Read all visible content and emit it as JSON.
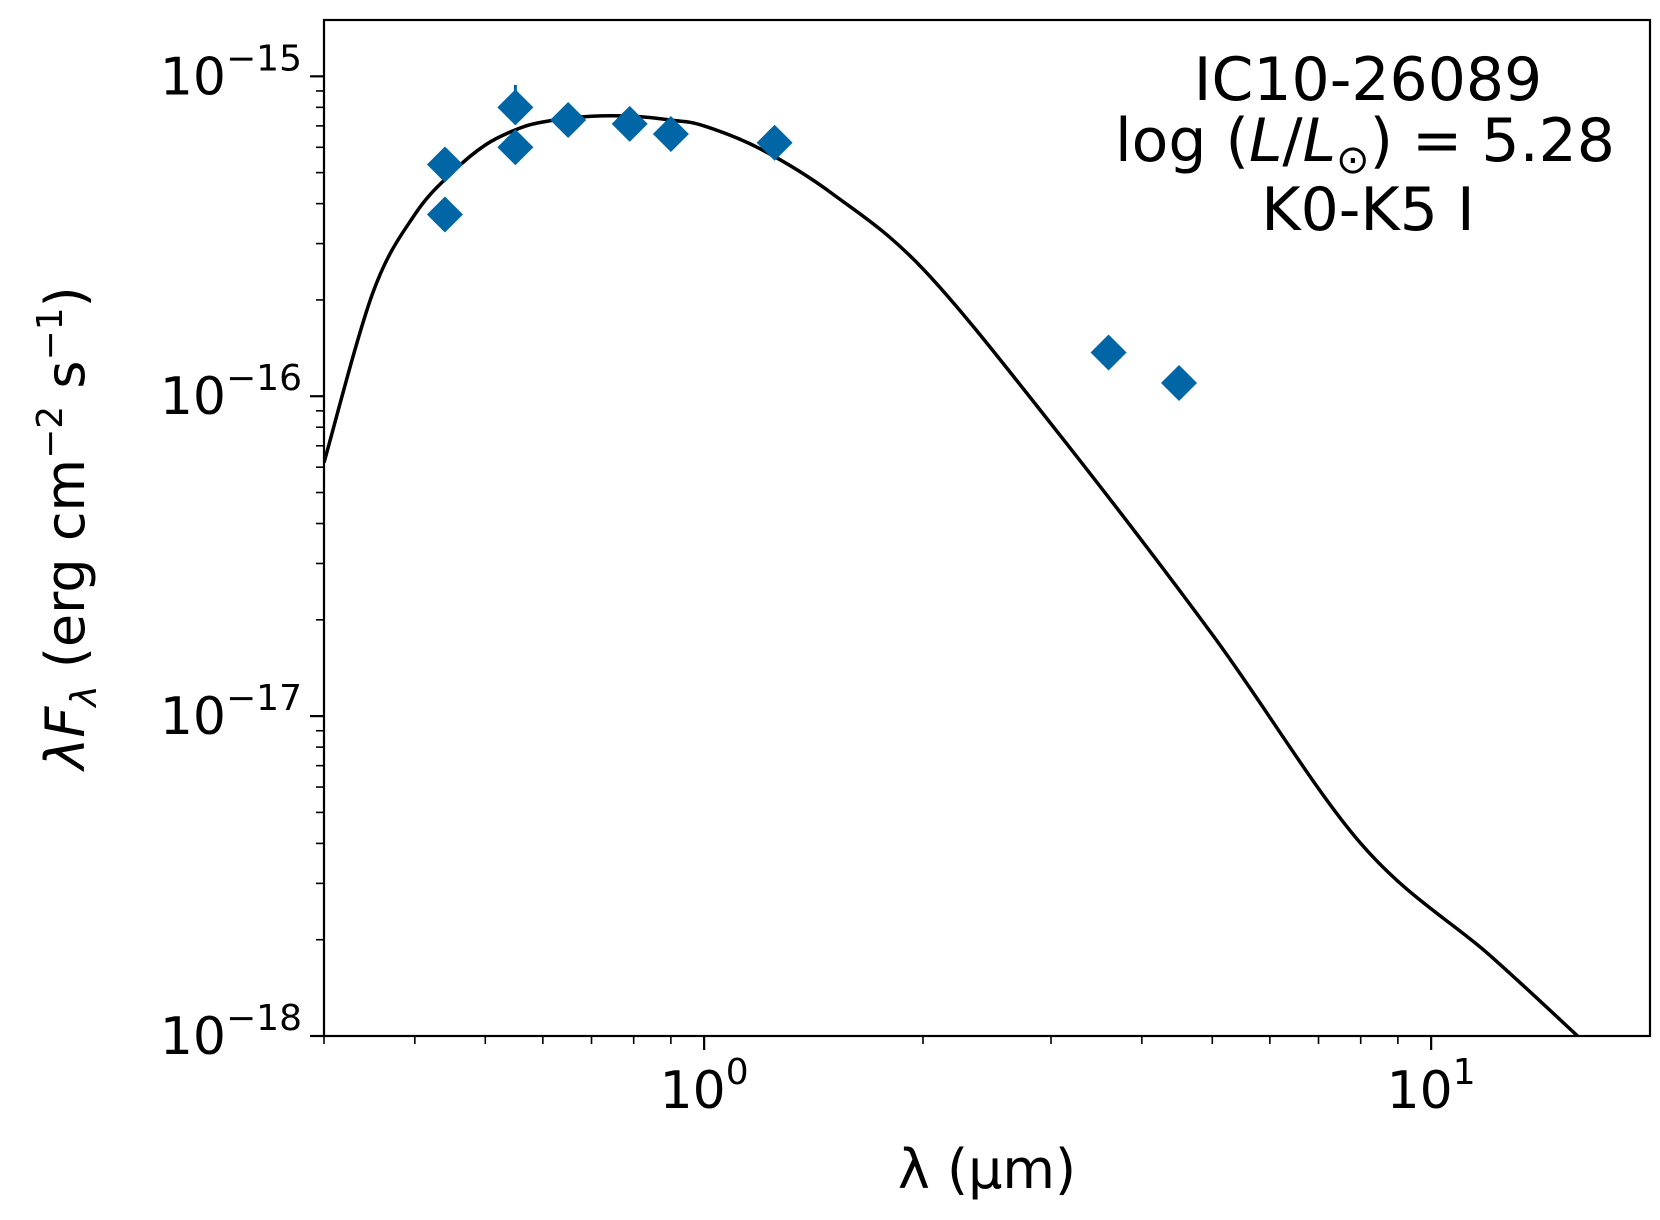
{
  "chart_data": {
    "type": "scatter",
    "scale": {
      "x": "log",
      "y": "log"
    },
    "xlim": [
      0.3,
      20
    ],
    "ylim": [
      1e-18,
      1.5e-15
    ],
    "xlabel": "λ (μm)",
    "ylabel": "λF_λ (erg cm⁻² s⁻¹)",
    "xticks": [
      {
        "value": 1,
        "base": "10",
        "exp": "0"
      },
      {
        "value": 10,
        "base": "10",
        "exp": "1"
      }
    ],
    "yticks": [
      {
        "value": 1e-15,
        "base": "10",
        "exp": "−15"
      },
      {
        "value": 1e-16,
        "base": "10",
        "exp": "−16"
      },
      {
        "value": 1e-17,
        "base": "10",
        "exp": "−17"
      },
      {
        "value": 1e-18,
        "base": "10",
        "exp": "−18"
      }
    ],
    "annotations": {
      "name": "IC10-26089",
      "luminosity_prefix": "log (",
      "luminosity_L": "L",
      "luminosity_slash": "/",
      "luminosity_Lsun": "L",
      "luminosity_sun": "⊙",
      "luminosity_suffix": ") = 5.28",
      "spectral_type": "K0-K5 I"
    },
    "series": [
      {
        "name": "photometry",
        "kind": "scatter",
        "marker": "diamond",
        "color": "#0066a6",
        "x": [
          0.44,
          0.44,
          0.55,
          0.55,
          0.65,
          0.79,
          0.9,
          1.25,
          3.6,
          4.5
        ],
        "y": [
          5.3e-16,
          3.7e-16,
          8e-16,
          6e-16,
          7.3e-16,
          7.1e-16,
          6.6e-16,
          6.2e-16,
          1.37e-16,
          1.1e-16
        ],
        "yerr_upper": [
          0,
          0,
          1.4e-16,
          0,
          0,
          0,
          0,
          0,
          0,
          0
        ]
      },
      {
        "name": "model SED",
        "kind": "line",
        "color": "#000000",
        "x": [
          0.3,
          0.35,
          0.4,
          0.45,
          0.5,
          0.55,
          0.6,
          0.7,
          0.8,
          0.9,
          1.0,
          1.2,
          1.5,
          2.0,
          3.0,
          5.0,
          8.0,
          12.0,
          15.9
        ],
        "y": [
          6.2e-17,
          2.1e-16,
          3.7e-16,
          5e-16,
          6.1e-16,
          6.8e-16,
          7.2e-16,
          7.5e-16,
          7.5e-16,
          7.3e-16,
          7e-16,
          5.9e-16,
          4.3e-16,
          2.5e-16,
          8.2e-17,
          1.8e-17,
          4e-18,
          1.8e-18,
          1e-18
        ]
      }
    ]
  }
}
